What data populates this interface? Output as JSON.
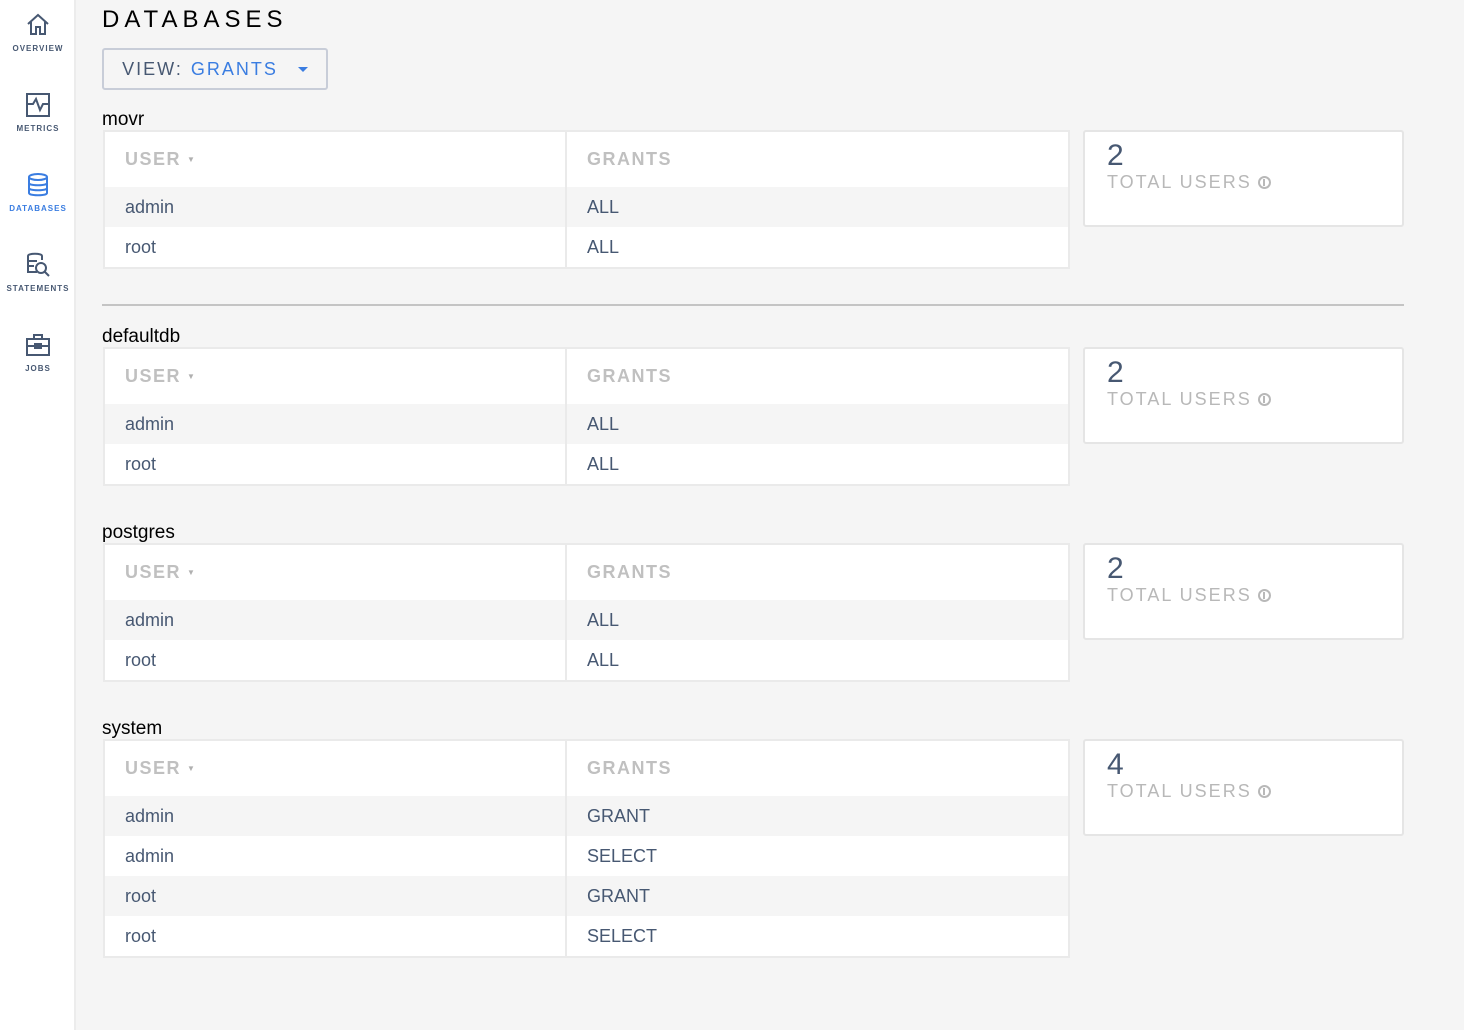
{
  "sidebar": {
    "items": [
      {
        "label": "OVERVIEW",
        "icon": "home-icon",
        "active": false
      },
      {
        "label": "METRICS",
        "icon": "metrics-icon",
        "active": false
      },
      {
        "label": "DATABASES",
        "icon": "database-icon",
        "active": true
      },
      {
        "label": "STATEMENTS",
        "icon": "statements-icon",
        "active": false
      },
      {
        "label": "JOBS",
        "icon": "jobs-icon",
        "active": false
      }
    ]
  },
  "header": {
    "title": "DATABASES",
    "view_label": "VIEW:",
    "view_value": "GRANTS"
  },
  "colors": {
    "accent": "#3a7de1",
    "text": "#475872",
    "header_text": "#c0c0c0"
  },
  "columns": {
    "user": "USER",
    "grants": "GRANTS"
  },
  "databases": [
    {
      "name": "movr",
      "rows": [
        [
          "admin",
          "ALL"
        ],
        [
          "root",
          "ALL"
        ]
      ],
      "total_users": "2",
      "total_label": "TOTAL USERS"
    },
    {
      "name": "defaultdb",
      "rows": [
        [
          "admin",
          "ALL"
        ],
        [
          "root",
          "ALL"
        ]
      ],
      "total_users": "2",
      "total_label": "TOTAL USERS"
    },
    {
      "name": "postgres",
      "rows": [
        [
          "admin",
          "ALL"
        ],
        [
          "root",
          "ALL"
        ]
      ],
      "total_users": "2",
      "total_label": "TOTAL USERS"
    },
    {
      "name": "system",
      "rows": [
        [
          "admin",
          "GRANT"
        ],
        [
          "admin",
          "SELECT"
        ],
        [
          "root",
          "GRANT"
        ],
        [
          "root",
          "SELECT"
        ]
      ],
      "total_users": "4",
      "total_label": "TOTAL USERS"
    }
  ]
}
